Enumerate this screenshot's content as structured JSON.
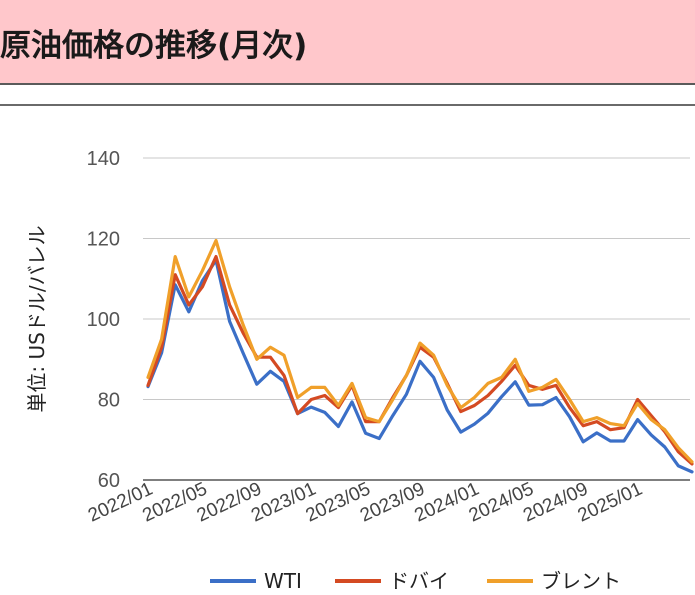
{
  "header": {
    "title": "原油価格の推移(月次)"
  },
  "chart_data": {
    "type": "line",
    "title": "",
    "xlabel": "",
    "ylabel": "単位: USドル/バレル",
    "ylim": [
      60,
      140
    ],
    "yticks": [
      60,
      80,
      100,
      120,
      140
    ],
    "grid": true,
    "legend": "bottom",
    "x": [
      "2022/01",
      "2022/02",
      "2022/03",
      "2022/04",
      "2022/05",
      "2022/06",
      "2022/07",
      "2022/08",
      "2022/09",
      "2022/10",
      "2022/11",
      "2022/12",
      "2023/01",
      "2023/02",
      "2023/03",
      "2023/04",
      "2023/05",
      "2023/06",
      "2023/07",
      "2023/08",
      "2023/09",
      "2023/10",
      "2023/11",
      "2023/12",
      "2024/01",
      "2024/02",
      "2024/03",
      "2024/04",
      "2024/05",
      "2024/06",
      "2024/07",
      "2024/08",
      "2024/09",
      "2024/10",
      "2024/11",
      "2024/12",
      "2025/01",
      "2025/02",
      "2025/03",
      "2025/04",
      "2025/05"
    ],
    "xtick_labels": [
      "2022/01",
      "2022/05",
      "2022/09",
      "2023/01",
      "2023/05",
      "2023/09",
      "2024/01",
      "2024/05",
      "2024/09",
      "2025/01"
    ],
    "series": [
      {
        "name": "WTI",
        "color": "#3b6fc7",
        "values": [
          83.2,
          91.6,
          108.5,
          101.8,
          109.5,
          114.6,
          99.4,
          91.5,
          83.8,
          87.0,
          84.5,
          76.5,
          78.1,
          76.8,
          73.3,
          79.4,
          71.6,
          70.3,
          76.0,
          81.3,
          89.5,
          85.5,
          77.4,
          71.9,
          73.9,
          76.6,
          80.7,
          84.4,
          78.6,
          78.7,
          80.5,
          75.7,
          69.5,
          71.7,
          69.7,
          69.7,
          75.0,
          71.2,
          68.2,
          63.5,
          62.0
        ]
      },
      {
        "name": "ドバイ",
        "color": "#d44a22",
        "values": [
          83.5,
          93.0,
          111.0,
          103.5,
          108.0,
          115.5,
          103.5,
          96.5,
          90.5,
          90.5,
          86.0,
          76.5,
          80.0,
          81.0,
          78.0,
          83.5,
          74.5,
          74.5,
          80.5,
          86.0,
          93.0,
          90.5,
          84.0,
          77.0,
          78.5,
          81.0,
          84.5,
          88.5,
          83.5,
          82.5,
          83.5,
          78.0,
          73.5,
          74.5,
          72.5,
          73.0,
          80.0,
          76.0,
          72.0,
          67.0,
          64.0
        ]
      },
      {
        "name": "ブレント",
        "color": "#f0a02a",
        "values": [
          85.5,
          95.0,
          115.5,
          105.5,
          112.0,
          119.5,
          108.0,
          98.5,
          90.0,
          93.0,
          91.0,
          80.5,
          83.0,
          83.0,
          78.5,
          84.0,
          75.5,
          74.5,
          80.0,
          86.0,
          94.0,
          91.0,
          83.5,
          78.0,
          80.5,
          84.0,
          85.5,
          90.0,
          82.0,
          83.0,
          85.0,
          80.0,
          74.5,
          75.5,
          74.0,
          73.5,
          79.0,
          75.0,
          72.5,
          68.0,
          64.5
        ]
      }
    ]
  }
}
